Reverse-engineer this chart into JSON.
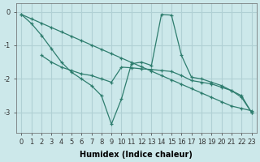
{
  "background_color": "#cce8ea",
  "grid_color": "#b0d0d4",
  "line_color": "#2e7d6e",
  "series": [
    {
      "x": [
        0,
        1,
        2,
        3,
        4,
        5,
        6,
        7,
        8,
        9,
        10,
        11,
        12,
        13,
        14,
        15,
        16,
        17,
        18,
        19,
        20,
        21,
        22,
        23
      ],
      "y": [
        -0.08,
        -0.35,
        -0.7,
        -1.1,
        -1.5,
        -1.8,
        -2.0,
        -2.2,
        -2.5,
        -3.35,
        -2.6,
        -1.55,
        -1.5,
        -1.6,
        -0.08,
        -0.1,
        -1.3,
        -1.95,
        -2.0,
        -2.1,
        -2.2,
        -2.35,
        -2.55,
        -3.0
      ]
    },
    {
      "x": [
        2,
        3,
        4,
        5,
        6,
        7,
        8,
        9,
        10,
        11,
        12,
        13,
        14,
        15,
        16,
        17,
        18,
        19,
        20,
        21,
        22,
        23
      ],
      "y": [
        -1.3,
        -1.5,
        -1.65,
        -1.75,
        -1.85,
        -1.9,
        -2.0,
        -2.1,
        -1.65,
        -1.67,
        -1.7,
        -1.72,
        -1.75,
        -1.78,
        -1.9,
        -2.05,
        -2.1,
        -2.15,
        -2.25,
        -2.35,
        -2.5,
        -3.0
      ]
    },
    {
      "x": [
        0,
        1,
        2,
        3,
        4,
        5,
        6,
        7,
        8,
        9,
        10,
        11,
        12,
        13,
        14,
        15,
        16,
        17,
        18,
        19,
        20,
        21,
        22,
        23
      ],
      "y": [
        -0.08,
        -0.21,
        -0.34,
        -0.47,
        -0.6,
        -0.73,
        -0.86,
        -0.99,
        -1.12,
        -1.25,
        -1.38,
        -1.51,
        -1.64,
        -1.77,
        -1.9,
        -2.03,
        -2.16,
        -2.29,
        -2.42,
        -2.55,
        -2.68,
        -2.81,
        -2.88,
        -2.95
      ]
    }
  ],
  "xlabel": "Humidex (Indice chaleur)",
  "xlim": [
    -0.5,
    23.5
  ],
  "ylim": [
    -3.6,
    0.25
  ],
  "xticks": [
    0,
    1,
    2,
    3,
    4,
    5,
    6,
    7,
    8,
    9,
    10,
    11,
    12,
    13,
    14,
    15,
    16,
    17,
    18,
    19,
    20,
    21,
    22,
    23
  ],
  "yticks": [
    0,
    -1,
    -2,
    -3
  ],
  "xlabel_fontsize": 7,
  "tick_fontsize": 6
}
